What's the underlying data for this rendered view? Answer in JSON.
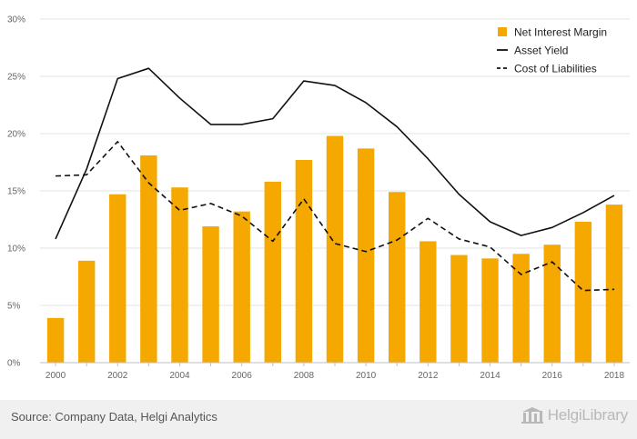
{
  "chart_data": {
    "type": "bar",
    "categories": [
      "2000",
      "2001",
      "2002",
      "2003",
      "2004",
      "2005",
      "2006",
      "2007",
      "2008",
      "2009",
      "2010",
      "2011",
      "2012",
      "2013",
      "2014",
      "2015",
      "2016",
      "2017",
      "2018"
    ],
    "x_tick_labels": [
      "2000",
      "2002",
      "2004",
      "2006",
      "2008",
      "2010",
      "2012",
      "2014",
      "2016",
      "2018"
    ],
    "y_tick_labels": [
      "0%",
      "5%",
      "10%",
      "15%",
      "20%",
      "25%",
      "30%"
    ],
    "ylim": [
      0,
      30
    ],
    "y_unit": "%",
    "grid": true,
    "legend_position": "top-right",
    "series": [
      {
        "name": "Net Interest Margin",
        "type": "bar",
        "color": "#f5a800",
        "values": [
          3.9,
          8.9,
          14.7,
          18.1,
          15.3,
          11.9,
          13.2,
          15.8,
          17.7,
          19.8,
          18.7,
          14.9,
          10.6,
          9.4,
          9.1,
          9.5,
          10.3,
          12.3,
          13.8
        ]
      },
      {
        "name": "Asset Yield",
        "type": "line",
        "style": "solid",
        "color": "#111111",
        "values": [
          10.8,
          16.9,
          24.8,
          25.7,
          23.1,
          20.8,
          20.8,
          21.3,
          24.6,
          24.2,
          22.7,
          20.6,
          17.8,
          14.7,
          12.3,
          11.1,
          11.8,
          13.1,
          14.6
        ]
      },
      {
        "name": "Cost of Liabilities",
        "type": "line",
        "style": "dashed",
        "color": "#111111",
        "values": [
          16.3,
          16.4,
          19.3,
          15.7,
          13.3,
          13.9,
          12.8,
          10.6,
          14.3,
          10.4,
          9.7,
          10.7,
          12.6,
          10.8,
          10.1,
          7.7,
          8.8,
          6.3,
          6.4
        ]
      }
    ]
  },
  "footer": {
    "source": "Source: Company Data, Helgi Analytics",
    "brand": "HelgiLibrary"
  }
}
